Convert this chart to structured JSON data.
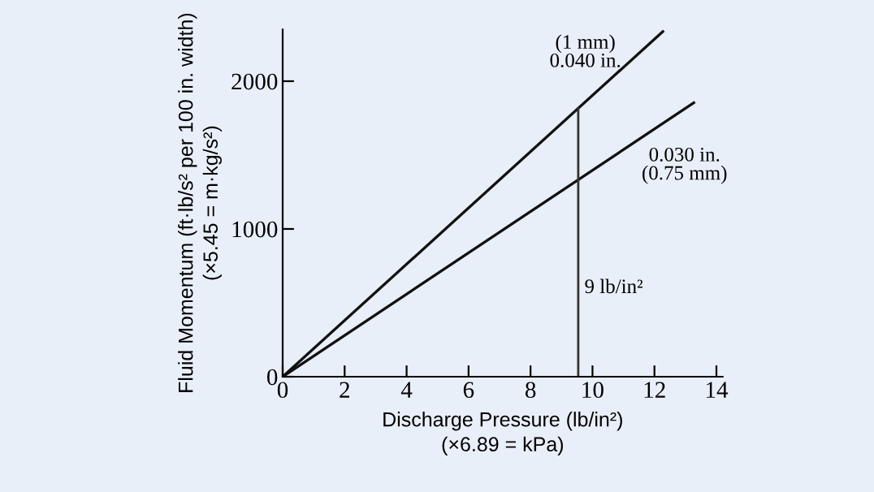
{
  "chart_data": {
    "type": "line",
    "xlabel": "Discharge Pressure (lb/in²)\n(×6.89 = kPa)",
    "ylabel": "Fluid Momentum (ft·lb/s² per 100 in. width)\n(×5.45 = m·kg/s²)",
    "series": [
      {
        "name": "(1 mm)\n0.040 in.",
        "color": "#111111",
        "x": [
          0,
          12.27
        ],
        "values": [
          0,
          2336
        ]
      },
      {
        "name": "0.030 in.\n(0.75 mm)",
        "color": "#111111",
        "x": [
          0,
          13.27
        ],
        "values": [
          0,
          1854
        ]
      }
    ],
    "ref_lines": [
      {
        "axis": "x",
        "value": 9.54,
        "label": "9 lb/in²",
        "color": "#333333"
      }
    ],
    "xlim": [
      0,
      14.2
    ],
    "ylim": [
      0,
      2350
    ],
    "xticks": [
      0,
      2,
      4,
      6,
      8,
      10,
      12,
      14
    ],
    "yticks": [
      0,
      1000,
      2000
    ],
    "grid": false,
    "legend": false,
    "marker": "none",
    "line_style": "solid"
  }
}
